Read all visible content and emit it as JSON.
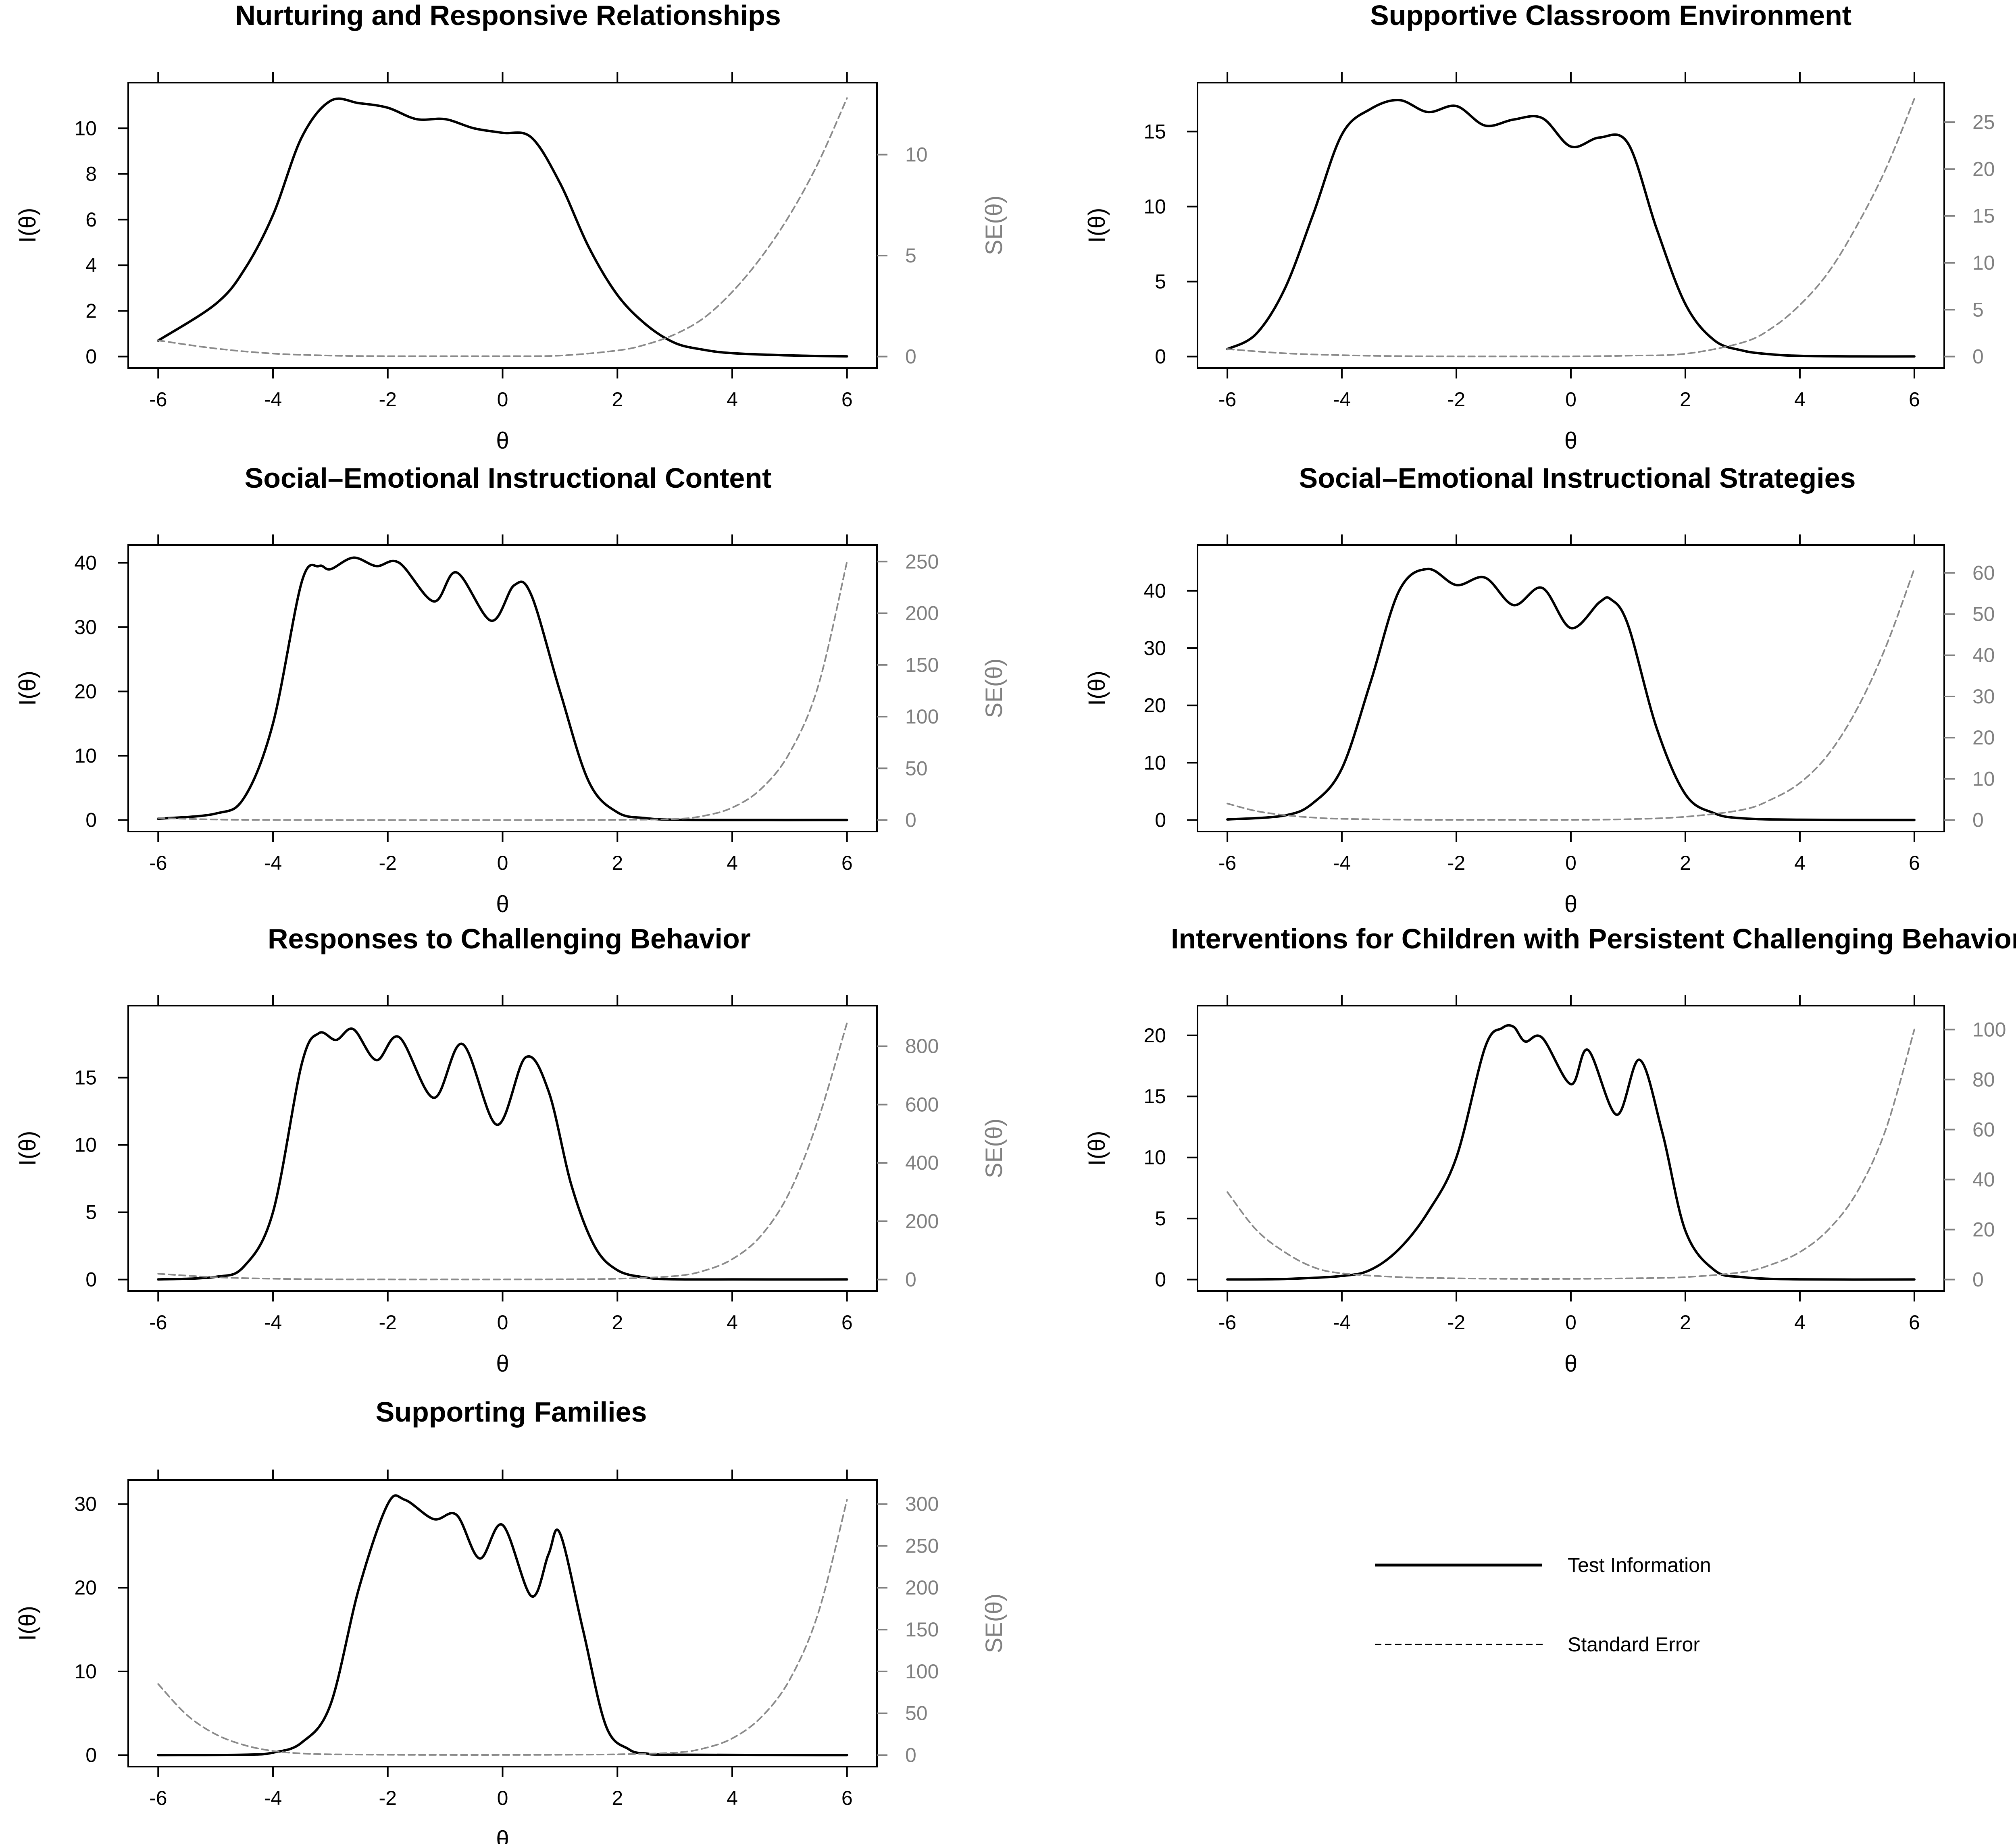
{
  "chart_data": [
    {
      "type": "line",
      "title": "Nurturing and Responsive Relationships",
      "xlabel": "θ",
      "ylabel": "I(θ)",
      "y2label": "SE(θ)",
      "xlim": [
        -6,
        6
      ],
      "xticks": [
        -6,
        -4,
        -2,
        0,
        2,
        4,
        6
      ],
      "ylim": [
        0,
        11.5
      ],
      "yticks": [
        0,
        2,
        4,
        6,
        8,
        10
      ],
      "y2lim": [
        0,
        13
      ],
      "y2ticks": [
        0,
        5,
        10
      ],
      "series": [
        {
          "name": "Test Information",
          "style": "solid",
          "axis": "left",
          "x": [
            -6,
            -5,
            -4.5,
            -4,
            -3.5,
            -3,
            -2.5,
            -2,
            -1.5,
            -1,
            -0.5,
            0,
            0.5,
            1,
            1.5,
            2,
            2.5,
            3,
            3.5,
            4,
            5,
            6
          ],
          "y": [
            0.7,
            2.3,
            3.8,
            6.2,
            9.6,
            11.2,
            11.1,
            10.9,
            10.4,
            10.4,
            10.0,
            9.8,
            9.6,
            7.6,
            4.8,
            2.7,
            1.4,
            0.6,
            0.3,
            0.15,
            0.05,
            0.01
          ]
        },
        {
          "name": "Standard Error",
          "style": "dashed",
          "axis": "right",
          "x": [
            -6,
            -5,
            -4,
            -3,
            -2,
            -1,
            0,
            1,
            2,
            2.5,
            3,
            3.5,
            4,
            4.5,
            5,
            5.5,
            6
          ],
          "y": [
            0.8,
            0.4,
            0.15,
            0.05,
            0.02,
            0.02,
            0.02,
            0.05,
            0.3,
            0.6,
            1.1,
            1.9,
            3.2,
            4.9,
            7.0,
            9.6,
            12.8
          ]
        }
      ]
    },
    {
      "type": "line",
      "title": "Supportive Classroom Environment",
      "xlabel": "θ",
      "ylabel": "I(θ)",
      "y2label": "SE(θ)",
      "xlim": [
        -6,
        6
      ],
      "xticks": [
        -6,
        -4,
        -2,
        0,
        2,
        4,
        6
      ],
      "ylim": [
        0,
        17.5
      ],
      "yticks": [
        0,
        5,
        10,
        15
      ],
      "y2lim": [
        0,
        28
      ],
      "y2ticks": [
        0,
        5,
        10,
        15,
        20,
        25
      ],
      "series": [
        {
          "name": "Test Information",
          "style": "solid",
          "axis": "left",
          "x": [
            -6,
            -5.5,
            -5,
            -4.5,
            -4,
            -3.5,
            -3,
            -2.5,
            -2,
            -1.5,
            -1,
            -0.5,
            0,
            0.5,
            1,
            1.5,
            2,
            2.5,
            3,
            3.5,
            4,
            5,
            6
          ],
          "y": [
            0.5,
            1.5,
            4.5,
            9.5,
            14.8,
            16.5,
            17.1,
            16.3,
            16.7,
            15.4,
            15.8,
            15.9,
            14.0,
            14.6,
            14.2,
            8.5,
            3.5,
            1.1,
            0.4,
            0.15,
            0.05,
            0.01,
            0.01
          ]
        },
        {
          "name": "Standard Error",
          "style": "dashed",
          "axis": "right",
          "x": [
            -6,
            -5,
            -4,
            -3,
            -2,
            -1,
            0,
            1,
            2,
            3,
            3.5,
            4,
            4.5,
            5,
            5.5,
            6
          ],
          "y": [
            0.8,
            0.35,
            0.15,
            0.05,
            0.02,
            0.02,
            0.02,
            0.1,
            0.3,
            1.5,
            3.0,
            5.5,
            9.0,
            14.0,
            20.0,
            27.5
          ]
        }
      ]
    },
    {
      "type": "line",
      "title": "Social–Emotional Instructional Content",
      "xlabel": "θ",
      "ylabel": "I(θ)",
      "y2label": "SE(θ)",
      "xlim": [
        -6,
        6
      ],
      "xticks": [
        -6,
        -4,
        -2,
        0,
        2,
        4,
        6
      ],
      "ylim": [
        0,
        41
      ],
      "yticks": [
        0,
        10,
        20,
        30,
        40
      ],
      "y2lim": [
        0,
        255
      ],
      "y2ticks": [
        0,
        50,
        100,
        150,
        200,
        250
      ],
      "series": [
        {
          "name": "Test Information",
          "style": "solid",
          "axis": "left",
          "x": [
            -6,
            -5,
            -4.5,
            -4,
            -3.5,
            -3.2,
            -3,
            -2.6,
            -2.2,
            -1.8,
            -1.2,
            -0.8,
            -0.2,
            0.2,
            0.5,
            1,
            1.5,
            2,
            2.5,
            3,
            4,
            6
          ],
          "y": [
            0.2,
            1,
            3.5,
            15,
            37,
            39.5,
            39,
            40.8,
            39.5,
            40,
            34,
            38.5,
            31,
            36.5,
            35,
            20,
            6,
            1.2,
            0.3,
            0.05,
            0.01,
            0.01
          ]
        },
        {
          "name": "Standard Error",
          "style": "dashed",
          "axis": "right",
          "x": [
            -6,
            -5,
            -4,
            -3,
            -2,
            -1,
            0,
            1,
            2,
            3,
            3.5,
            4,
            4.5,
            5,
            5.5,
            6
          ],
          "y": [
            2,
            0.5,
            0.1,
            0.05,
            0.02,
            0.02,
            0.02,
            0.05,
            0.2,
            1,
            4,
            12,
            30,
            65,
            130,
            250
          ]
        }
      ]
    },
    {
      "type": "line",
      "title": "Social–Emotional Instructional Strategies",
      "xlabel": "θ",
      "ylabel": "I(θ)",
      "y2label": "SE(θ)",
      "xlim": [
        -6,
        6
      ],
      "xticks": [
        -6,
        -4,
        -2,
        0,
        2,
        4,
        6
      ],
      "ylim": [
        0,
        46
      ],
      "yticks": [
        0,
        10,
        20,
        30,
        40
      ],
      "y2lim": [
        0,
        64
      ],
      "y2ticks": [
        0,
        10,
        20,
        30,
        40,
        50,
        60
      ],
      "series": [
        {
          "name": "Test Information",
          "style": "solid",
          "axis": "left",
          "x": [
            -6,
            -5,
            -4.5,
            -4,
            -3.5,
            -3,
            -2.5,
            -2,
            -1.5,
            -1,
            -0.5,
            0,
            0.5,
            0.7,
            1,
            1.5,
            2,
            2.5,
            3,
            4,
            6
          ],
          "y": [
            0.1,
            0.8,
            3,
            9,
            24,
            40,
            43.8,
            41,
            42.3,
            37.5,
            40.5,
            33.5,
            38,
            38.5,
            34,
            16,
            4.5,
            1.2,
            0.3,
            0.05,
            0.01
          ]
        },
        {
          "name": "Standard Error",
          "style": "dashed",
          "axis": "right",
          "x": [
            -6,
            -5.5,
            -5,
            -4.5,
            -4,
            -3,
            -2,
            -1,
            0,
            1,
            2,
            3,
            3.5,
            4,
            4.5,
            5,
            5.5,
            6
          ],
          "y": [
            4,
            2.2,
            1.2,
            0.6,
            0.3,
            0.1,
            0.05,
            0.05,
            0.05,
            0.2,
            0.8,
            2.5,
            5,
            9,
            16,
            27,
            42,
            61
          ]
        }
      ]
    },
    {
      "type": "line",
      "title": "Responses to Challenging Behavior",
      "xlabel": "θ",
      "ylabel": "I(θ)",
      "y2label": "SE(θ)",
      "xlim": [
        -6,
        6
      ],
      "xticks": [
        -6,
        -4,
        -2,
        0,
        2,
        4,
        6
      ],
      "ylim": [
        0,
        19.5
      ],
      "yticks": [
        0,
        5,
        10,
        15
      ],
      "y2lim": [
        0,
        900
      ],
      "y2ticks": [
        0,
        200,
        400,
        600,
        800
      ],
      "series": [
        {
          "name": "Test Information",
          "style": "solid",
          "axis": "left",
          "x": [
            -6,
            -5,
            -4.5,
            -4,
            -3.5,
            -3.2,
            -2.9,
            -2.6,
            -2.2,
            -1.8,
            -1.2,
            -0.7,
            -0.1,
            0.4,
            0.8,
            1.2,
            1.6,
            2,
            2.5,
            3,
            4,
            6
          ],
          "y": [
            0.01,
            0.2,
            1,
            5,
            16,
            18.3,
            17.8,
            18.6,
            16.3,
            18,
            13.5,
            17.5,
            11.5,
            16.5,
            14,
            7,
            2.5,
            0.7,
            0.15,
            0.02,
            0.01,
            0.01
          ]
        },
        {
          "name": "Standard Error",
          "style": "dashed",
          "axis": "right",
          "x": [
            -6,
            -5,
            -4,
            -3,
            -2,
            -1,
            0,
            1,
            2,
            3,
            3.5,
            4,
            4.5,
            5,
            5.5,
            6
          ],
          "y": [
            20,
            8,
            3,
            1,
            0.5,
            0.5,
            0.5,
            1,
            3,
            12,
            30,
            70,
            150,
            300,
            550,
            880
          ]
        }
      ]
    },
    {
      "type": "line",
      "title": "Interventions for Children with Persistent Challenging Behavior",
      "xlabel": "θ",
      "ylabel": "I(θ)",
      "y2label": "SE(θ)",
      "xlim": [
        -6,
        6
      ],
      "xticks": [
        -6,
        -4,
        -2,
        0,
        2,
        4,
        6
      ],
      "ylim": [
        0,
        21.5
      ],
      "yticks": [
        0,
        5,
        10,
        15,
        20
      ],
      "y2lim": [
        0,
        105
      ],
      "y2ticks": [
        0,
        20,
        40,
        60,
        80,
        100
      ],
      "series": [
        {
          "name": "Test Information",
          "style": "solid",
          "axis": "left",
          "x": [
            -6,
            -5,
            -4,
            -3.5,
            -3,
            -2.5,
            -2,
            -1.5,
            -1.2,
            -1,
            -0.8,
            -0.5,
            0,
            0.3,
            0.8,
            1.2,
            1.6,
            2,
            2.5,
            3,
            4,
            6
          ],
          "y": [
            0.01,
            0.05,
            0.3,
            0.8,
            2.5,
            5.5,
            10,
            19,
            20.6,
            20.7,
            19.5,
            19.8,
            16,
            18.8,
            13.5,
            18,
            12,
            4,
            0.8,
            0.2,
            0.02,
            0.01
          ]
        },
        {
          "name": "Standard Error",
          "style": "dashed",
          "axis": "right",
          "x": [
            -6,
            -5.5,
            -5,
            -4.5,
            -4,
            -3,
            -2,
            -1,
            0,
            1,
            2,
            3,
            3.5,
            4,
            4.5,
            5,
            5.5,
            6
          ],
          "y": [
            35,
            20,
            11,
            5,
            2.5,
            1,
            0.5,
            0.3,
            0.3,
            0.5,
            1,
            3,
            6,
            11,
            20,
            35,
            60,
            100
          ]
        }
      ]
    },
    {
      "type": "line",
      "title": "Supporting Families",
      "xlabel": "θ",
      "ylabel": "I(θ)",
      "y2label": "SE(θ)",
      "xlim": [
        -6,
        6
      ],
      "xticks": [
        -6,
        -4,
        -2,
        0,
        2,
        4,
        6
      ],
      "ylim": [
        0,
        31.5
      ],
      "yticks": [
        0,
        10,
        20,
        30
      ],
      "y2lim": [
        0,
        315
      ],
      "y2ticks": [
        0,
        50,
        100,
        150,
        200,
        250,
        300
      ],
      "series": [
        {
          "name": "Test Information",
          "style": "solid",
          "axis": "left",
          "x": [
            -6,
            -4.5,
            -4,
            -3.5,
            -3,
            -2.5,
            -2,
            -1.7,
            -1.2,
            -0.8,
            -0.4,
            0,
            0.5,
            0.8,
            1,
            1.4,
            1.8,
            2.2,
            2.5,
            3,
            6
          ],
          "y": [
            0.01,
            0.05,
            0.3,
            1.5,
            6,
            20,
            30,
            30.5,
            28.2,
            28.7,
            23.5,
            27.5,
            19,
            24,
            26.5,
            15,
            3.5,
            0.7,
            0.2,
            0.05,
            0.01
          ]
        },
        {
          "name": "Standard Error",
          "style": "dashed",
          "axis": "right",
          "x": [
            -6,
            -5.5,
            -5,
            -4.5,
            -4,
            -3.5,
            -3,
            -2,
            -1,
            0,
            1,
            2,
            3,
            3.5,
            4,
            4.5,
            5,
            5.5,
            6
          ],
          "y": [
            85,
            48,
            25,
            12,
            5,
            2,
            1,
            0.5,
            0.3,
            0.3,
            0.5,
            1,
            3,
            8,
            20,
            45,
            90,
            170,
            305
          ]
        }
      ]
    }
  ],
  "legend": {
    "items": [
      {
        "label": "Test Information",
        "style": "solid"
      },
      {
        "label": "Standard Error",
        "style": "dashed"
      }
    ]
  }
}
